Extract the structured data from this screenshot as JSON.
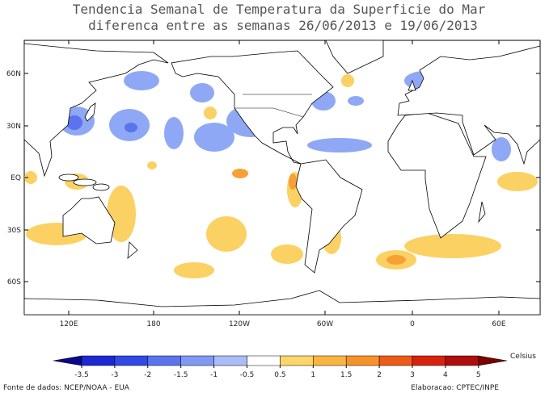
{
  "header": {
    "title": "Tendencia Semanal de Temperatura da Superficie do Mar",
    "subtitle": "diferenca entre as semanas 26/06/2013 e 19/06/2013"
  },
  "map": {
    "lat_labels": [
      "60N",
      "30N",
      "EQ",
      "30S",
      "60S"
    ],
    "lon_labels": [
      "120E",
      "180",
      "120W",
      "60W",
      "0",
      "60E"
    ]
  },
  "colorbar": {
    "unit": "Celsius",
    "ticks": [
      -3.5,
      -3,
      -2,
      -1.5,
      -1,
      -0.5,
      0.5,
      1,
      1.5,
      2,
      3,
      4,
      5
    ],
    "colors": [
      "#08088c",
      "#1c28d2",
      "#2f4ae6",
      "#5c73ee",
      "#8199f3",
      "#a9bdf8",
      "#ffffff",
      "#fcd669",
      "#f9b53f",
      "#f7922a",
      "#ee5a18",
      "#d8220e",
      "#ae0e0e",
      "#7c0000"
    ]
  },
  "footer": {
    "source": "Fonte de dados: NCEP/NOAA - EUA",
    "credit": "Elaboracao: CPTEC/INPE"
  }
}
